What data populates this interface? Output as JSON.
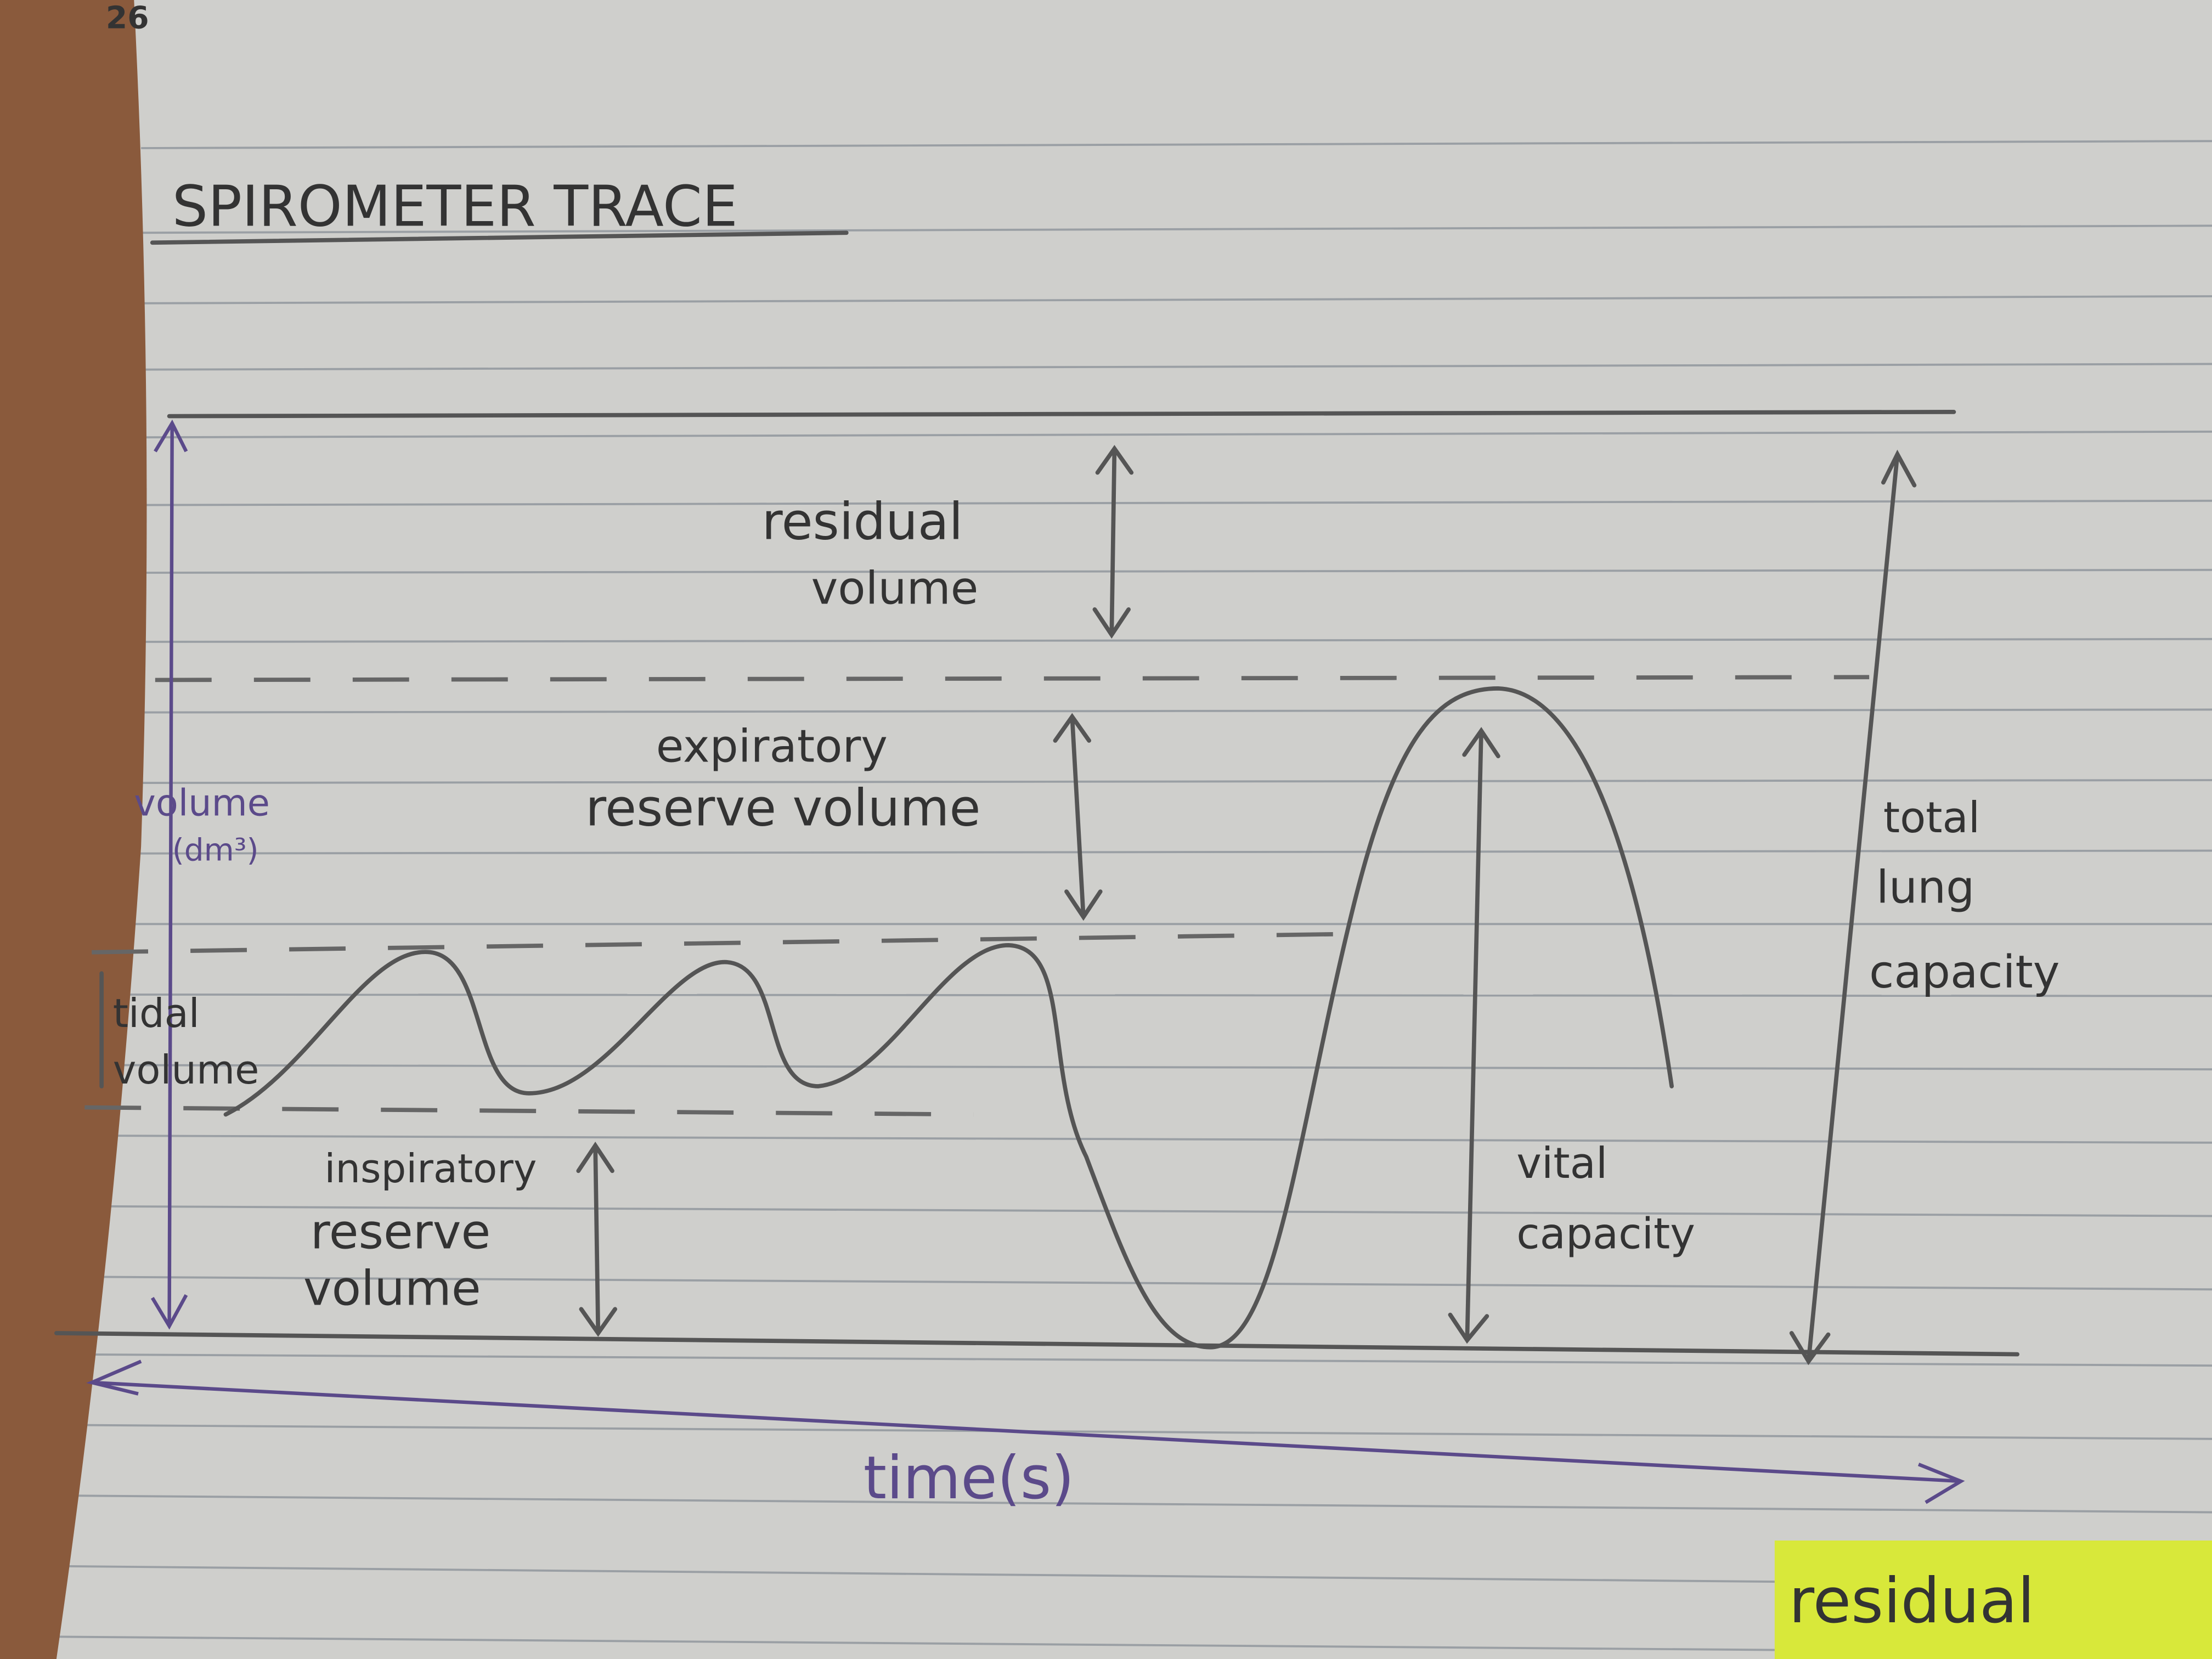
{
  "page_number": "26",
  "title": "SPIROMETER TRACE",
  "y_axis_label": [
    "volume",
    "(dm³)"
  ],
  "x_axis_label": "time(s)",
  "annotations": [
    {
      "lines": [
        "residual",
        "volume"
      ]
    },
    {
      "lines": [
        "expiratory",
        "reserve volume"
      ]
    },
    {
      "lines": [
        "tidal",
        "volume"
      ]
    },
    {
      "lines": [
        "inspiratory",
        "reserve",
        "volume"
      ]
    },
    {
      "lines": [
        "vital",
        "capacity"
      ]
    },
    {
      "lines": [
        "total",
        "lung",
        "capacity"
      ]
    }
  ],
  "sticky_note": "residual"
}
